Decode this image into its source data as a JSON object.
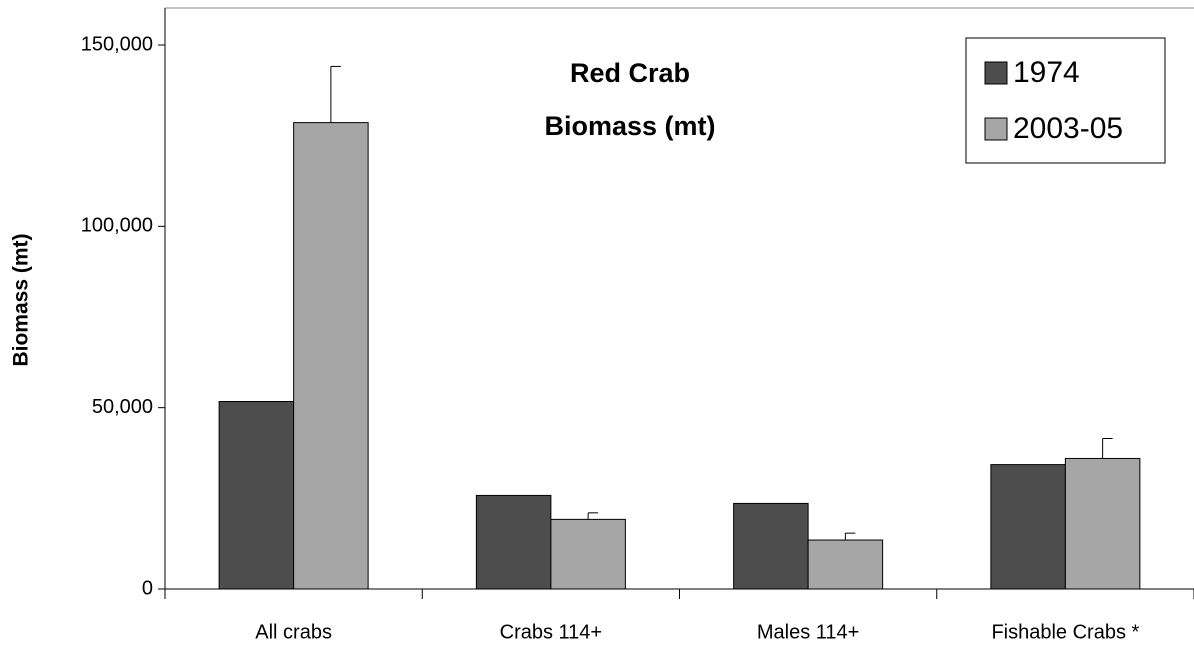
{
  "chart_data": {
    "type": "bar",
    "title": [
      "Red Crab",
      "Biomass (mt)"
    ],
    "y_label": "Biomass (mt)",
    "categories": [
      "All crabs",
      "Crabs 114+",
      "Males 114+",
      "Fishable Crabs *"
    ],
    "series": [
      {
        "name": "1974",
        "color": "#4d4d4d",
        "values": [
          51700,
          25800,
          23600,
          34300
        ]
      },
      {
        "name": "2003-05",
        "color": "#a6a6a6",
        "values": [
          128600,
          19200,
          13500,
          36000
        ],
        "errors": [
          15500,
          1800,
          1900,
          5500
        ]
      }
    ],
    "ylim": [
      0,
      150000
    ],
    "yticks": [
      0,
      {
        "value": 50000,
        "label": "50,000"
      },
      {
        "value": 100000,
        "label": "100,000"
      },
      {
        "value": 150000,
        "label": "150,000"
      }
    ],
    "legend": "top-right"
  }
}
